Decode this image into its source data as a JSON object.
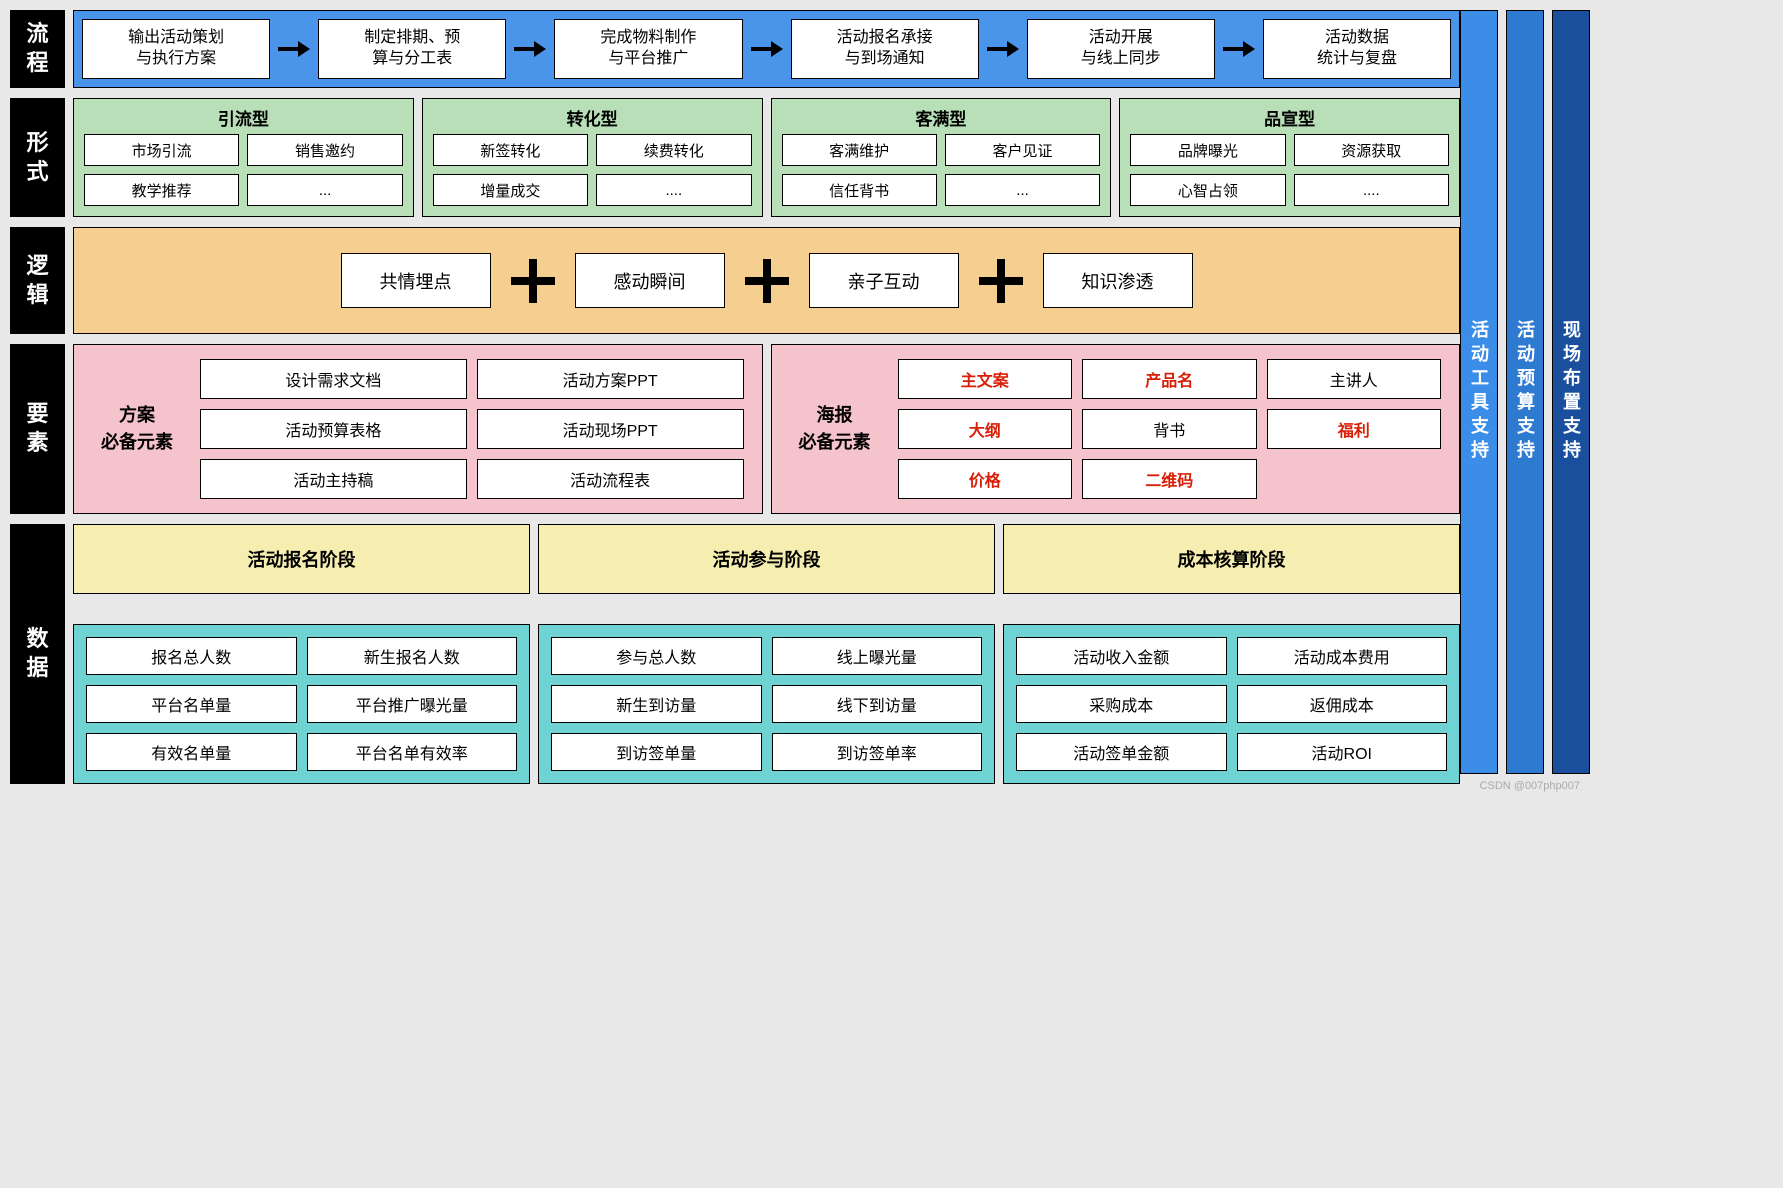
{
  "rows": {
    "flow": {
      "label": "流程"
    },
    "forms": {
      "label": "形式"
    },
    "logic": {
      "label": "逻辑"
    },
    "elem": {
      "label": "要素"
    },
    "data": {
      "label": "数据"
    }
  },
  "flow": {
    "bg": "#4a94e9",
    "steps": [
      "输出活动策划\n与执行方案",
      "制定排期、预\n算与分工表",
      "完成物料制作\n与平台推广",
      "活动报名承接\n与到场通知",
      "活动开展\n与线上同步",
      "活动数据\n统计与复盘"
    ]
  },
  "forms": {
    "bg": "#b8dfb8",
    "groups": [
      {
        "title": "引流型",
        "items": [
          "市场引流",
          "销售邀约",
          "教学推荐",
          "..."
        ]
      },
      {
        "title": "转化型",
        "items": [
          "新签转化",
          "续费转化",
          "增量成交",
          "...."
        ]
      },
      {
        "title": "客满型",
        "items": [
          "客满维护",
          "客户见证",
          "信任背书",
          "..."
        ]
      },
      {
        "title": "品宣型",
        "items": [
          "品牌曝光",
          "资源获取",
          "心智占领",
          "...."
        ]
      }
    ]
  },
  "logic": {
    "bg": "#f5cf8f",
    "items": [
      "共情埋点",
      "感动瞬间",
      "亲子互动",
      "知识渗透"
    ]
  },
  "elements": {
    "bg": "#f5c3cc",
    "panels": [
      {
        "label": "方案\n必备元素",
        "cols": 2,
        "items": [
          {
            "t": "设计需求文档"
          },
          {
            "t": "活动方案PPT"
          },
          {
            "t": "活动预算表格"
          },
          {
            "t": "活动现场PPT"
          },
          {
            "t": "活动主持稿"
          },
          {
            "t": "活动流程表"
          }
        ]
      },
      {
        "label": "海报\n必备元素",
        "cols": 3,
        "items": [
          {
            "t": "主文案",
            "red": true
          },
          {
            "t": "产品名",
            "red": true
          },
          {
            "t": "主讲人"
          },
          {
            "t": "大纲",
            "red": true
          },
          {
            "t": "背书"
          },
          {
            "t": "福利",
            "red": true
          },
          {
            "t": "价格",
            "red": true
          },
          {
            "t": "二维码",
            "red": true
          }
        ]
      }
    ]
  },
  "data": {
    "phase_bg": "#f5eeb0",
    "panel_bg": "#6fd3d3",
    "phases": [
      "活动报名阶段",
      "活动参与阶段",
      "成本核算阶段"
    ],
    "panels": [
      [
        "报名总人数",
        "新生报名人数",
        "平台名单量",
        "平台推广曝光量",
        "有效名单量",
        "平台名单有效率"
      ],
      [
        "参与总人数",
        "线上曝光量",
        "新生到访量",
        "线下到访量",
        "到访签单量",
        "到访签单率"
      ],
      [
        "活动收入金额",
        "活动成本费用",
        "采购成本",
        "返佣成本",
        "活动签单金额",
        "活动ROI"
      ]
    ]
  },
  "pillars": [
    {
      "text": "活动工具支持",
      "bg": "#3b8de8"
    },
    {
      "text": "活动预算支持",
      "bg": "#2e7ad1"
    },
    {
      "text": "现场布置支持",
      "bg": "#1a4f9e"
    }
  ],
  "watermark": "CSDN @007php007"
}
